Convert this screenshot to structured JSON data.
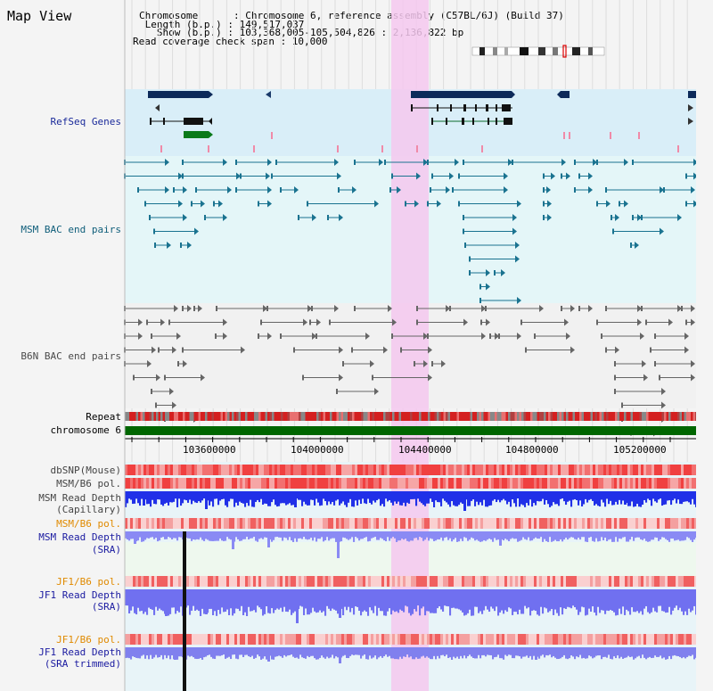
{
  "page": {
    "title": "Map View"
  },
  "info": {
    "chromosome": "Chromosome      : Chromosome 6, reference assembly (C57BL/6J) (Build 37)",
    "length": " Length (b.p.) : 149,517,037",
    "show": "   Show (b.p.) : 103,368,005-105,504,826 : 2,136,822 bp",
    "coverage": "Read coverage check span : 10,000"
  },
  "tracks": {
    "refseq": "RefSeq Genes",
    "msm_bac": "MSM BAC end pairs",
    "b6n_bac": "B6N BAC end pairs",
    "repeat": "Repeat",
    "chromosome": "chromosome 6",
    "dbsnp": "dbSNP(Mouse)",
    "msm_b6_pol_1": "MSM/B6 pol.",
    "msm_depth_cap_1": "MSM Read Depth",
    "msm_depth_cap_2": "(Capillary)",
    "msm_b6_pol_2": "MSM/B6 pol.",
    "msm_depth_sra_1": "MSM Read Depth",
    "msm_depth_sra_2": "(SRA)",
    "jf1_b6_pol_1": "JF1/B6 pol.",
    "jf1_depth_sra_1": "JF1 Read Depth",
    "jf1_depth_sra_2": "(SRA)",
    "jf1_b6_pol_2": "JF1/B6 pol.",
    "jf1_depth_trim_1": "JF1 Read Depth",
    "jf1_depth_trim_2": "(SRA trimmed)"
  },
  "axis": {
    "ticks": [
      "103600000",
      "104000000",
      "104400000",
      "104800000",
      "105200000"
    ]
  },
  "colors": {
    "refseq_label": "#1a2a9a",
    "msm_label": "#0f5e7a",
    "b6n_label": "#4a4a4a",
    "pol_label": "#e08a00",
    "depth_label": "#1a1aa0",
    "highlight": "#f4c8ee",
    "chrom_bar": "#006600"
  }
}
